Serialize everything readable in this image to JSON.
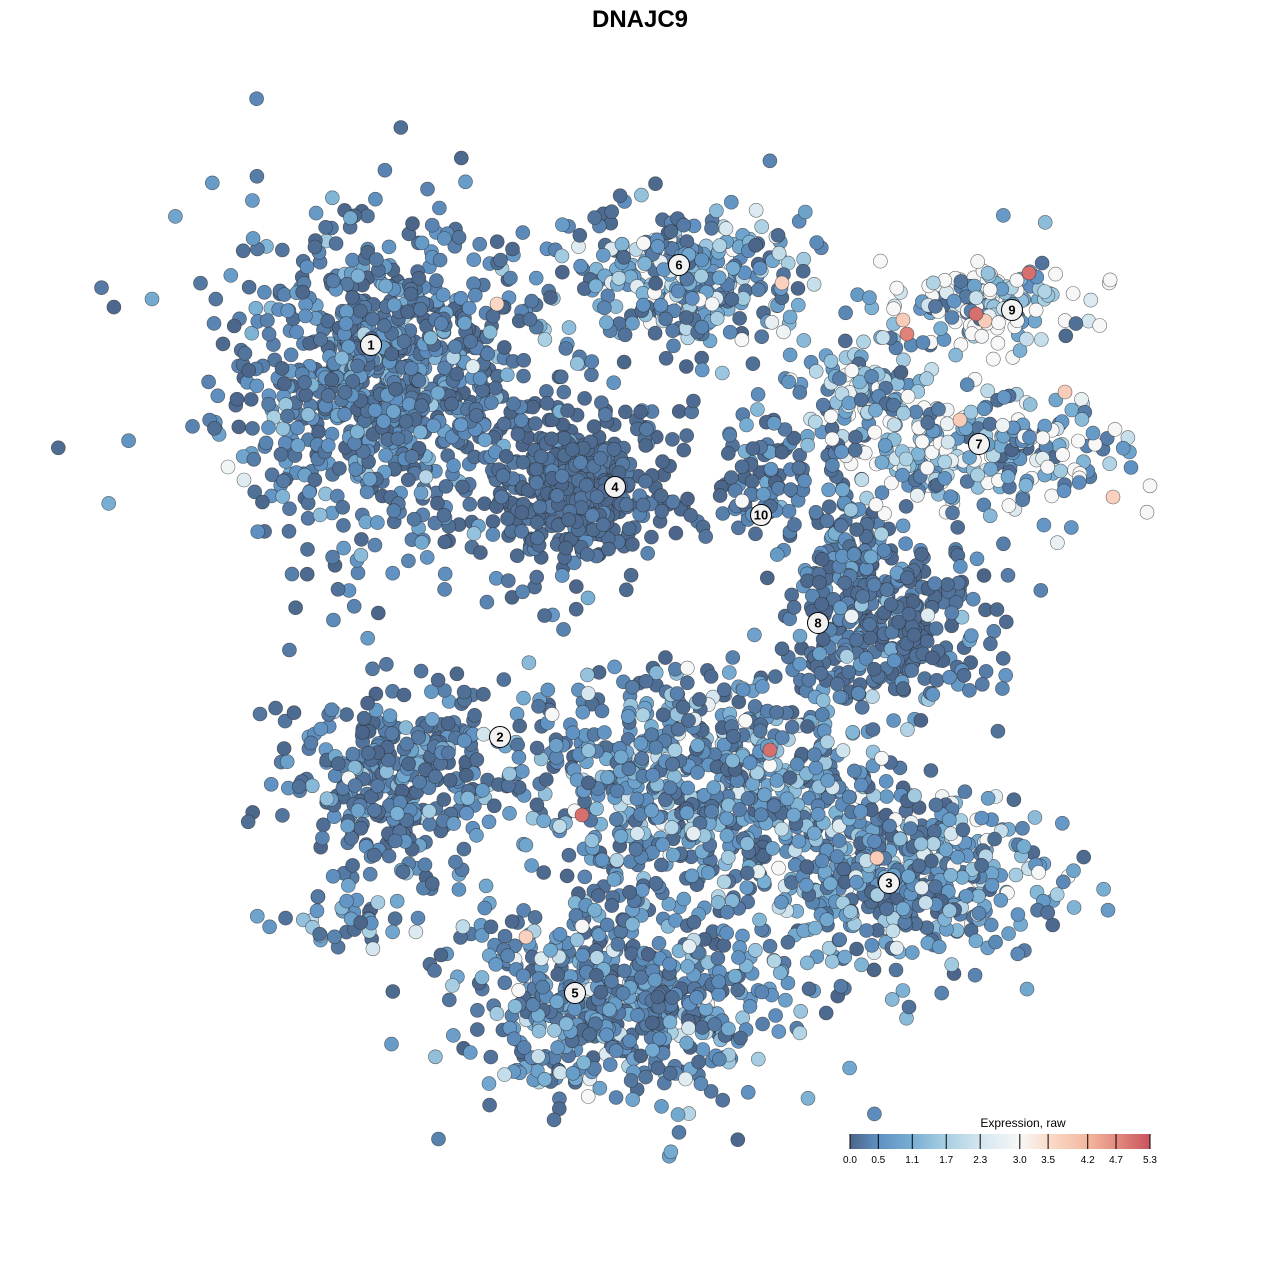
{
  "chart_data": {
    "type": "scatter",
    "title": "DNAJC9",
    "xlabel": "",
    "ylabel": "",
    "axes_visible": false,
    "grid": false,
    "color_variable": "Expression, raw",
    "legend": {
      "title": "Expression, raw",
      "placement": "bottom-right",
      "ticks": [
        "0.0",
        "0.5",
        "1.1",
        "1.7",
        "2.3",
        "3.0",
        "3.5",
        "4.2",
        "4.7",
        "5.3"
      ],
      "range": [
        0.0,
        5.3
      ],
      "colors": [
        {
          "value": 0.0,
          "color": "#4b6589"
        },
        {
          "value": 0.5,
          "color": "#5f91c2"
        },
        {
          "value": 1.1,
          "color": "#78afd3"
        },
        {
          "value": 1.7,
          "color": "#a9cfe3"
        },
        {
          "value": 2.3,
          "color": "#d4e6ef"
        },
        {
          "value": 3.0,
          "color": "#f7f7f7"
        },
        {
          "value": 3.5,
          "color": "#fbdccb"
        },
        {
          "value": 4.2,
          "color": "#f3b79e"
        },
        {
          "value": 4.7,
          "color": "#e38c7f"
        },
        {
          "value": 5.3,
          "color": "#c9535f"
        }
      ]
    },
    "clusters": [
      {
        "label": "1",
        "label_pos": [
          -26.9,
          29.5
        ],
        "center": [
          -26,
          26
        ],
        "spread": [
          8,
          8
        ],
        "count": 900,
        "mean_expression": 0.4
      },
      {
        "label": "6",
        "label_pos": [
          3.9,
          37.5
        ],
        "center": [
          5,
          36
        ],
        "spread": [
          6,
          3.5
        ],
        "count": 300,
        "mean_expression": 0.9
      },
      {
        "label": "4",
        "label_pos": [
          -2.5,
          15.3
        ],
        "center": [
          -6,
          15
        ],
        "spread": [
          4.5,
          4.5
        ],
        "count": 400,
        "mean_expression": 0.12
      },
      {
        "label": "10",
        "label_pos": [
          12.1,
          12.5
        ],
        "center": [
          12.5,
          16
        ],
        "spread": [
          2,
          3.5
        ],
        "count": 80,
        "mean_expression": 0.3
      },
      {
        "label": "9",
        "label_pos": [
          37.2,
          33
        ],
        "center": [
          34.5,
          33.5
        ],
        "spread": [
          5,
          2.5
        ],
        "count": 150,
        "mean_expression": 2.2
      },
      {
        "label": "7",
        "label_pos": [
          33.9,
          19.6
        ],
        "center": [
          34,
          19
        ],
        "spread": [
          7,
          3
        ],
        "count": 250,
        "mean_expression": 1.8
      },
      {
        "label": "",
        "label_pos": null,
        "center": [
          22,
          25
        ],
        "spread": [
          3,
          3
        ],
        "count": 80,
        "mean_expression": 1.5
      },
      {
        "label": "8",
        "label_pos": [
          17.8,
          1.7
        ],
        "center": [
          25,
          2
        ],
        "spread": [
          5,
          4
        ],
        "count": 300,
        "mean_expression": 0.25
      },
      {
        "label": "",
        "label_pos": null,
        "center": [
          21,
          10
        ],
        "spread": [
          2.5,
          4
        ],
        "count": 100,
        "mean_expression": 0.6
      },
      {
        "label": "2",
        "label_pos": [
          -14,
          -9.7
        ],
        "center": [
          -24,
          -14
        ],
        "spread": [
          5.5,
          4.5
        ],
        "count": 350,
        "mean_expression": 0.35
      },
      {
        "label": "",
        "label_pos": null,
        "center": [
          6,
          -14
        ],
        "spread": [
          9,
          6
        ],
        "count": 700,
        "mean_expression": 0.7
      },
      {
        "label": "3",
        "label_pos": [
          24.9,
          -24.3
        ],
        "center": [
          26,
          -24
        ],
        "spread": [
          7,
          4.5
        ],
        "count": 450,
        "mean_expression": 0.8
      },
      {
        "label": "5",
        "label_pos": [
          -6.5,
          -35.3
        ],
        "center": [
          -2,
          -36
        ],
        "spread": [
          8,
          5
        ],
        "count": 600,
        "mean_expression": 0.6
      },
      {
        "label": "",
        "label_pos": null,
        "center": [
          -29,
          -28.5
        ],
        "spread": [
          4,
          2
        ],
        "count": 40,
        "mean_expression": 0.8
      }
    ],
    "high_expression_points": [
      {
        "x": -14.3,
        "y": 33.6,
        "value": 3.6
      },
      {
        "x": 14.2,
        "y": 35.7,
        "value": 3.7
      },
      {
        "x": 38.9,
        "y": 36.7,
        "value": 5.0
      },
      {
        "x": 33.6,
        "y": 32.6,
        "value": 5.0
      },
      {
        "x": 26.7,
        "y": 30.6,
        "value": 4.8
      },
      {
        "x": 26.3,
        "y": 32.0,
        "value": 3.8
      },
      {
        "x": 34.5,
        "y": 31.9,
        "value": 3.8
      },
      {
        "x": 42.5,
        "y": 24.8,
        "value": 3.8
      },
      {
        "x": 32.0,
        "y": 22.0,
        "value": 3.8
      },
      {
        "x": 47.3,
        "y": 14.3,
        "value": 3.7
      },
      {
        "x": 13.0,
        "y": -11.0,
        "value": 5.0
      },
      {
        "x": -5.8,
        "y": -17.5,
        "value": 5.0
      },
      {
        "x": 23.7,
        "y": -21.8,
        "value": 3.8
      },
      {
        "x": -11.4,
        "y": -29.7,
        "value": 3.7
      },
      {
        "x": -41.2,
        "y": 17.3,
        "value": 2.9
      },
      {
        "x": -39.6,
        "y": 16.0,
        "value": 2.5
      }
    ]
  }
}
